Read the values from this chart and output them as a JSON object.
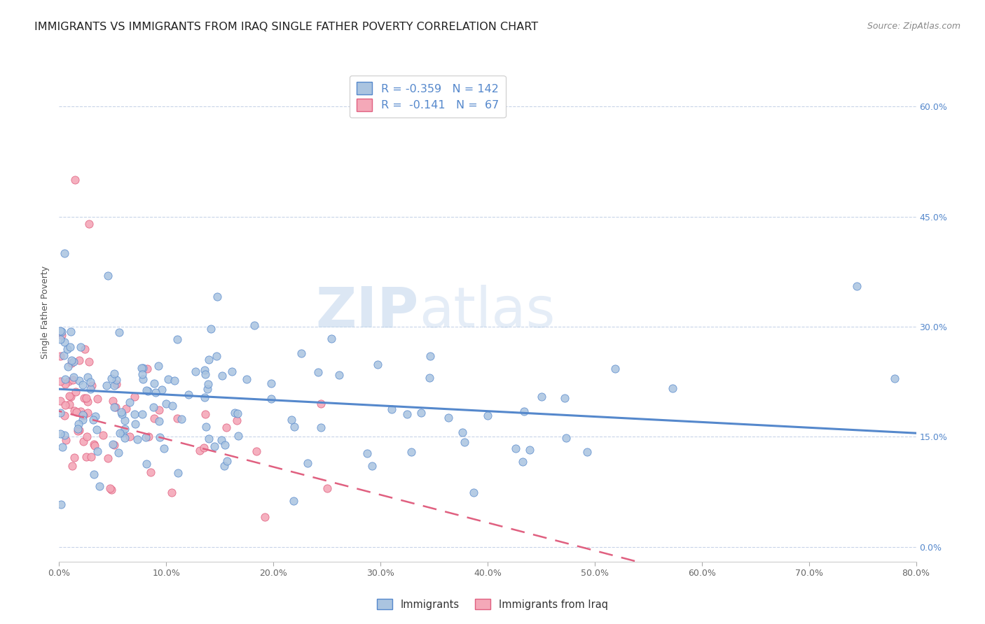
{
  "title": "IMMIGRANTS VS IMMIGRANTS FROM IRAQ SINGLE FATHER POVERTY CORRELATION CHART",
  "source": "Source: ZipAtlas.com",
  "ylabel": "Single Father Poverty",
  "xmin": 0.0,
  "xmax": 0.8,
  "ymin": -0.02,
  "ymax": 0.66,
  "blue_color": "#aac4e0",
  "blue_line_color": "#5588cc",
  "pink_color": "#f4a8b8",
  "pink_line_color": "#e06080",
  "watermark_zip": "ZIP",
  "watermark_atlas": "atlas",
  "legend_blue_r": "R = -0.359",
  "legend_blue_n": "N = 142",
  "legend_pink_r": "R =  -0.141",
  "legend_pink_n": "N =  67",
  "legend_immigrants": "Immigrants",
  "legend_iraq": "Immigrants from Iraq",
  "N_blue": 142,
  "N_pink": 67,
  "blue_intercept": 0.215,
  "blue_slope": -0.075,
  "pink_intercept": 0.185,
  "pink_slope": -0.38,
  "title_fontsize": 11.5,
  "axis_label_fontsize": 9,
  "tick_fontsize": 9,
  "source_fontsize": 9,
  "background_color": "#ffffff",
  "grid_color": "#c8d4e8",
  "right_tick_color": "#5588cc",
  "y_tick_vals": [
    0.0,
    0.15,
    0.3,
    0.45,
    0.6
  ],
  "y_tick_labels": [
    "0.0%",
    "15.0%",
    "30.0%",
    "45.0%",
    "60.0%"
  ],
  "x_tick_vals": [
    0.0,
    0.1,
    0.2,
    0.3,
    0.4,
    0.5,
    0.6,
    0.7,
    0.8
  ],
  "x_tick_labels": [
    "0.0%",
    "10.0%",
    "20.0%",
    "30.0%",
    "40.0%",
    "50.0%",
    "60.0%",
    "70.0%",
    "80.0%"
  ]
}
